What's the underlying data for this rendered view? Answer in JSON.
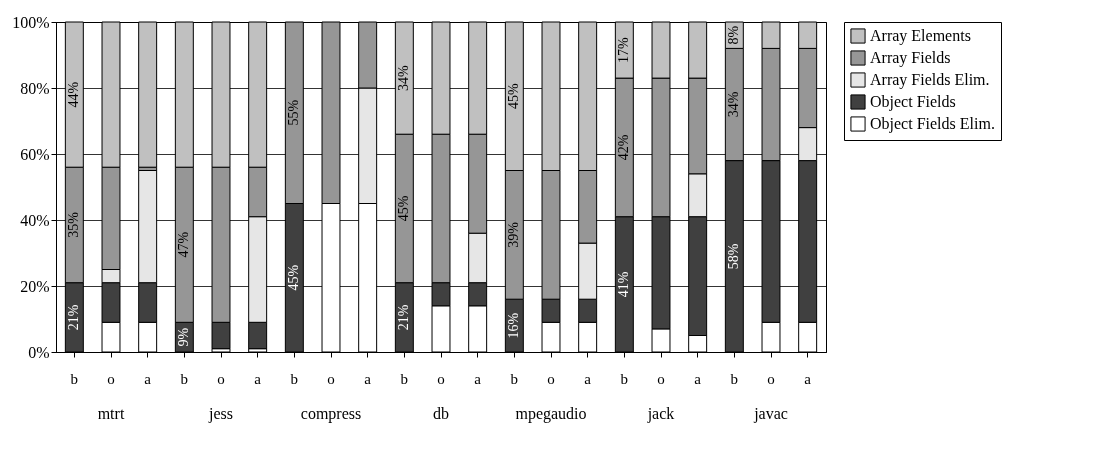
{
  "chart_data": {
    "type": "bar",
    "stacked": true,
    "categories": [
      "b",
      "o",
      "a",
      "b",
      "o",
      "a",
      "b",
      "o",
      "a",
      "b",
      "o",
      "a",
      "b",
      "o",
      "a",
      "b",
      "o",
      "a",
      "b",
      "o",
      "a"
    ],
    "series": [
      {
        "name": "Object Fields Elim.",
        "color": "#ffffff",
        "values": [
          0,
          9,
          9,
          0,
          1,
          1,
          0,
          45,
          45,
          0,
          14,
          14,
          0,
          9,
          9,
          0,
          7,
          5,
          0,
          9,
          9
        ]
      },
      {
        "name": "Object Fields",
        "color": "#404040",
        "values": [
          21,
          12,
          12,
          9,
          8,
          8,
          45,
          0,
          0,
          21,
          7,
          7,
          16,
          7,
          7,
          41,
          34,
          36,
          58,
          49,
          49
        ],
        "value_labels": [
          "21%",
          null,
          null,
          "9%",
          null,
          null,
          "45%",
          null,
          null,
          "21%",
          null,
          null,
          "16%",
          null,
          null,
          "41%",
          null,
          null,
          "58%",
          null,
          null
        ]
      },
      {
        "name": "Array Fields Elim.",
        "color": "#e6e6e6",
        "values": [
          0,
          4,
          34,
          0,
          0,
          32,
          0,
          0,
          35,
          0,
          0,
          15,
          0,
          0,
          17,
          0,
          0,
          13,
          0,
          0,
          10
        ]
      },
      {
        "name": "Array Fields",
        "color": "#969696",
        "values": [
          35,
          31,
          1,
          47,
          47,
          15,
          55,
          55,
          20,
          45,
          45,
          30,
          39,
          39,
          22,
          42,
          42,
          29,
          34,
          34,
          24
        ],
        "value_labels": [
          "35%",
          null,
          null,
          "47%",
          null,
          null,
          "55%",
          null,
          null,
          "45%",
          null,
          null,
          "39%",
          null,
          null,
          "42%",
          null,
          null,
          "34%",
          null,
          null
        ]
      },
      {
        "name": "Array Elements",
        "color": "#c0c0c0",
        "values": [
          44,
          44,
          44,
          44,
          44,
          44,
          0,
          0,
          0,
          34,
          34,
          34,
          45,
          45,
          45,
          17,
          17,
          17,
          8,
          8,
          8
        ],
        "value_labels": [
          "44%",
          null,
          null,
          null,
          null,
          null,
          null,
          null,
          null,
          "34%",
          null,
          null,
          "45%",
          null,
          null,
          "17%",
          null,
          null,
          "8%",
          null,
          null
        ]
      }
    ],
    "ylim": [
      0,
      100
    ],
    "yticks": [
      {
        "value": 0,
        "label": "0%"
      },
      {
        "value": 20,
        "label": "20%"
      },
      {
        "value": 40,
        "label": "40%"
      },
      {
        "value": 60,
        "label": "60%"
      },
      {
        "value": 80,
        "label": "80%"
      },
      {
        "value": 100,
        "label": "100%"
      }
    ],
    "grid": "y",
    "legend": "right",
    "annotations": [
      "mtrt",
      "jess",
      "compress",
      "db",
      "mpegaudio",
      "jack",
      "javac"
    ]
  }
}
